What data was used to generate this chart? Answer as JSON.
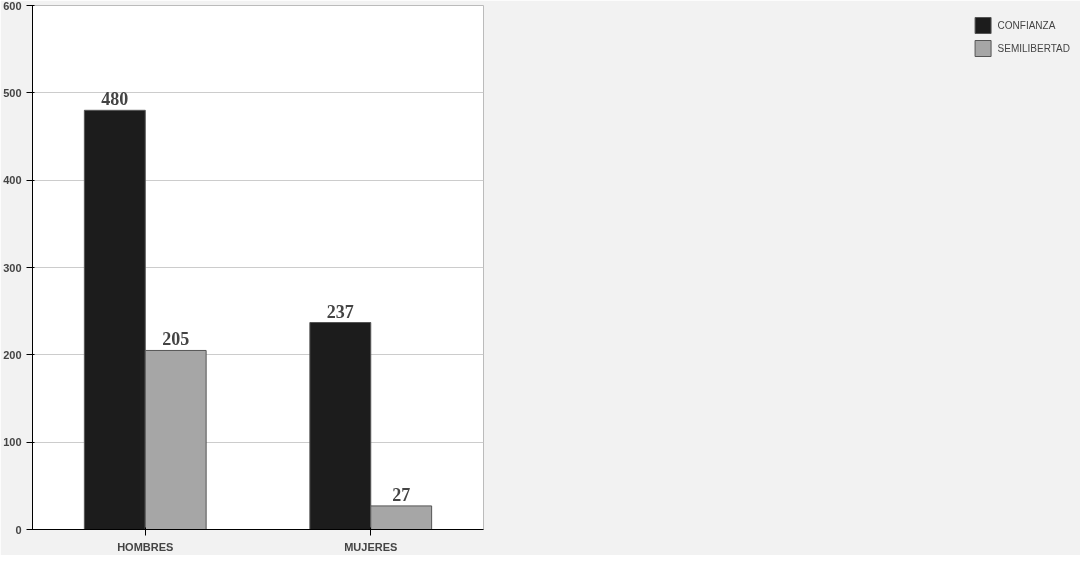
{
  "chart_data": {
    "type": "bar",
    "categories": [
      "HOMBRES",
      "MUJERES"
    ],
    "series": [
      {
        "name": "CONFIANZA",
        "color": "#1c1c1c",
        "values": [
          480,
          237
        ]
      },
      {
        "name": "SEMILIBERTAD",
        "color": "#a6a6a6",
        "values": [
          205,
          27
        ]
      }
    ],
    "ylim": [
      0,
      600
    ],
    "yticks": [
      0,
      100,
      200,
      300,
      400,
      500,
      600
    ],
    "grid": "y",
    "legend": "right",
    "data_labels": true
  }
}
